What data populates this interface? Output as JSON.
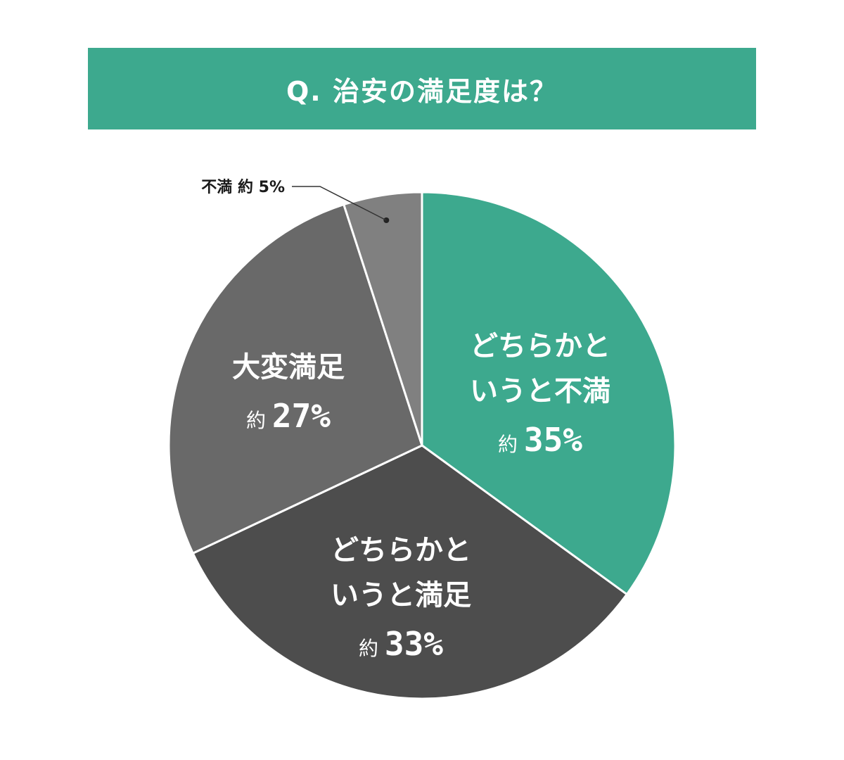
{
  "chart_data": {
    "type": "pie",
    "title": "Q. 治安の満足度は？",
    "slices": [
      {
        "name_lines": [
          "どちらかと",
          "いうと不満"
        ],
        "prefix": "約",
        "value_label": "35%",
        "value": 35,
        "color": "#3da98e"
      },
      {
        "name_lines": [
          "どちらかと",
          "いうと満足"
        ],
        "prefix": "約",
        "value_label": "33%",
        "value": 33,
        "color": "#4d4d4d"
      },
      {
        "name_lines": [
          "大変満足"
        ],
        "prefix": "約",
        "value_label": "27%",
        "value": 27,
        "color": "#696969"
      },
      {
        "name_lines": [
          "不満"
        ],
        "prefix": "約",
        "value_label": "5%",
        "value": 5,
        "color": "#808080",
        "outside": true
      }
    ],
    "start_angle_deg": 0,
    "direction": "clockwise",
    "legend": "none"
  }
}
